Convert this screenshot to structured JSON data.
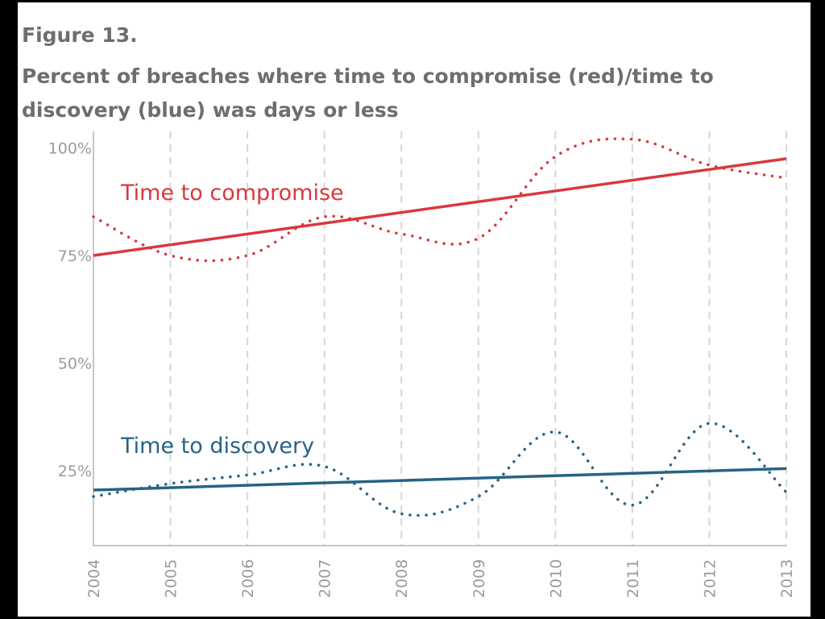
{
  "figure_label": "Figure 13.",
  "chart_title": "Percent of breaches where time to compromise (red)/time to discovery (blue) was days or less",
  "colors": {
    "compromise": "#d9383d",
    "discovery": "#276386",
    "tick_text": "#9b9b9b",
    "grid": "#d6d6d6",
    "axis": "#c6c6c6",
    "title_text": "#6e6e6e",
    "frame": "#000000"
  },
  "chart_data": {
    "type": "line",
    "title": "Percent of breaches where time to compromise (red)/time to discovery (blue) was days or less",
    "xlabel": "",
    "ylabel": "",
    "x": [
      2004,
      2005,
      2006,
      2007,
      2008,
      2009,
      2010,
      2011,
      2012,
      2013
    ],
    "x_tick_labels": [
      "2004",
      "2005",
      "2006",
      "2007",
      "2008",
      "2009",
      "2010",
      "2011",
      "2012",
      "2013"
    ],
    "y_ticks": [
      25,
      50,
      75,
      100
    ],
    "y_tick_labels": [
      "25%",
      "50%",
      "75%",
      "100%"
    ],
    "ylim": [
      8,
      100
    ],
    "grid": "vertical dashed",
    "legend": "inline labels",
    "series": [
      {
        "name": "Time to compromise",
        "style": "dotted",
        "values": [
          84,
          75,
          75,
          84,
          80,
          79,
          98,
          102,
          96,
          93
        ],
        "trend": [
          75,
          97.5
        ]
      },
      {
        "name": "Time to discovery",
        "style": "dotted",
        "values": [
          19,
          22,
          24,
          26,
          15,
          19,
          34,
          17,
          36,
          20
        ],
        "trend": [
          20.5,
          25.5
        ]
      }
    ]
  }
}
